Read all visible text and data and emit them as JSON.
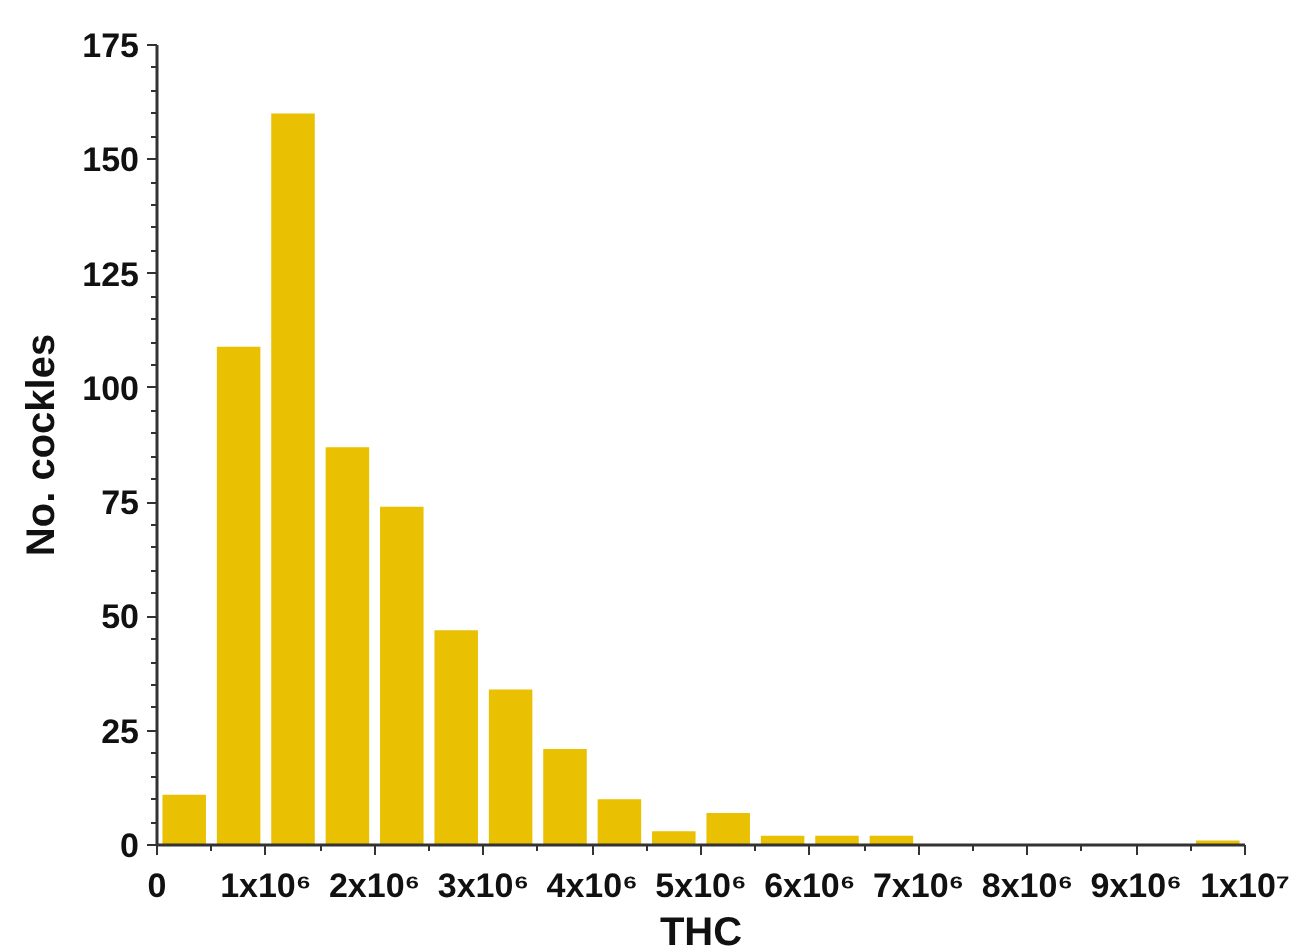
{
  "chart_data": {
    "type": "histogram",
    "xlabel": "THC",
    "ylabel": "No. cockles",
    "color": "#e9c102",
    "bins": [
      0,
      500000,
      1000000,
      1500000,
      2000000,
      2500000,
      3000000,
      3500000,
      4000000,
      4500000,
      5000000,
      5500000,
      6000000,
      6500000,
      7000000,
      7500000,
      8000000,
      8500000,
      9000000,
      9500000,
      10000000
    ],
    "values": [
      11,
      109,
      160,
      87,
      74,
      47,
      34,
      21,
      10,
      3,
      7,
      2,
      2,
      2,
      0,
      0,
      0,
      0,
      0,
      1
    ],
    "xlim": [
      0,
      10000000
    ],
    "xticks": [
      0,
      {
        "value": 1000000,
        "label": "1x10⁶"
      },
      {
        "value": 2000000,
        "label": "2x10⁶"
      },
      {
        "value": 3000000,
        "label": "3x10⁶"
      },
      {
        "value": 4000000,
        "label": "4x10⁶"
      },
      {
        "value": 5000000,
        "label": "5x10⁶"
      },
      {
        "value": 6000000,
        "label": "6x10⁶"
      },
      {
        "value": 7000000,
        "label": "7x10⁶"
      },
      {
        "value": 8000000,
        "label": "8x10⁶"
      },
      {
        "value": 9000000,
        "label": "9x10⁶"
      },
      {
        "value": 10000000,
        "label": "1x10⁷"
      }
    ],
    "ylim": [
      0,
      175
    ],
    "yticks": [
      0,
      25,
      50,
      75,
      100,
      125,
      150,
      175
    ],
    "grid": false
  }
}
